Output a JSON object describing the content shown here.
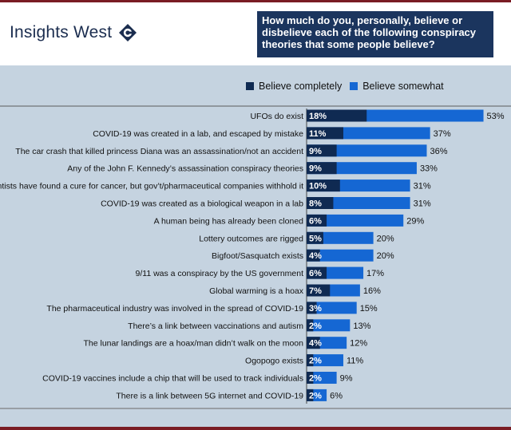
{
  "header": {
    "logo_text": "Insights West",
    "question": "How much do you, personally, believe or disbelieve each of the following conspiracy theories that some people believe?"
  },
  "colors": {
    "believe_completely": "#0f2a52",
    "believe_somewhat": "#1567d3",
    "panel": "#c5d3e0",
    "accent_rule": "#7a1c24"
  },
  "legend": {
    "completely": "Believe completely",
    "somewhat": "Believe somewhat"
  },
  "chart_data": {
    "type": "bar",
    "orientation": "horizontal",
    "stacked": true,
    "categories": [
      "UFOs do exist",
      "COVID-19 was created in a lab, and escaped by mistake",
      "The car crash that killed princess Diana was an assassination/not an accident",
      "Any of the John F. Kennedy’s assassination conspiracy theories",
      "Scientists have found a cure for cancer, but gov’t/pharmaceutical companies withhold it",
      "COVID-19 was created as a biological weapon in a lab",
      "A human being has already been cloned",
      "Lottery outcomes are rigged",
      "Bigfoot/Sasquatch exists",
      "9/11 was a conspiracy by the US government",
      "Global warming is a hoax",
      "The pharmaceutical industry was involved in the spread of COVID-19",
      "There’s a link between vaccinations and autism",
      "The lunar landings are a hoax/man didn’t walk on the moon",
      "Ogopogo exists",
      "COVID-19 vaccines include a chip that will be used to track individuals",
      "There is a link between 5G internet and COVID-19"
    ],
    "series": [
      {
        "name": "Believe completely",
        "values": [
          18,
          11,
          9,
          9,
          10,
          8,
          6,
          5,
          4,
          6,
          7,
          3,
          2,
          4,
          2,
          2,
          2
        ]
      }
    ],
    "totals": [
      53,
      37,
      36,
      33,
      31,
      31,
      29,
      20,
      20,
      17,
      16,
      15,
      13,
      12,
      11,
      9,
      6
    ],
    "completely_labels": [
      "18%",
      "11%",
      "9%",
      "9%",
      "10%",
      "8%",
      "6%",
      "5%",
      "4%",
      "6%",
      "7%",
      "3%",
      "2%",
      "4%",
      "2%",
      "2%",
      "2%"
    ],
    "total_labels": [
      "53%",
      "37%",
      "36%",
      "33%",
      "31%",
      "31%",
      "29%",
      "20%",
      "20%",
      "17%",
      "16%",
      "15%",
      "13%",
      "12%",
      "11%",
      "9%",
      "6%"
    ]
  }
}
